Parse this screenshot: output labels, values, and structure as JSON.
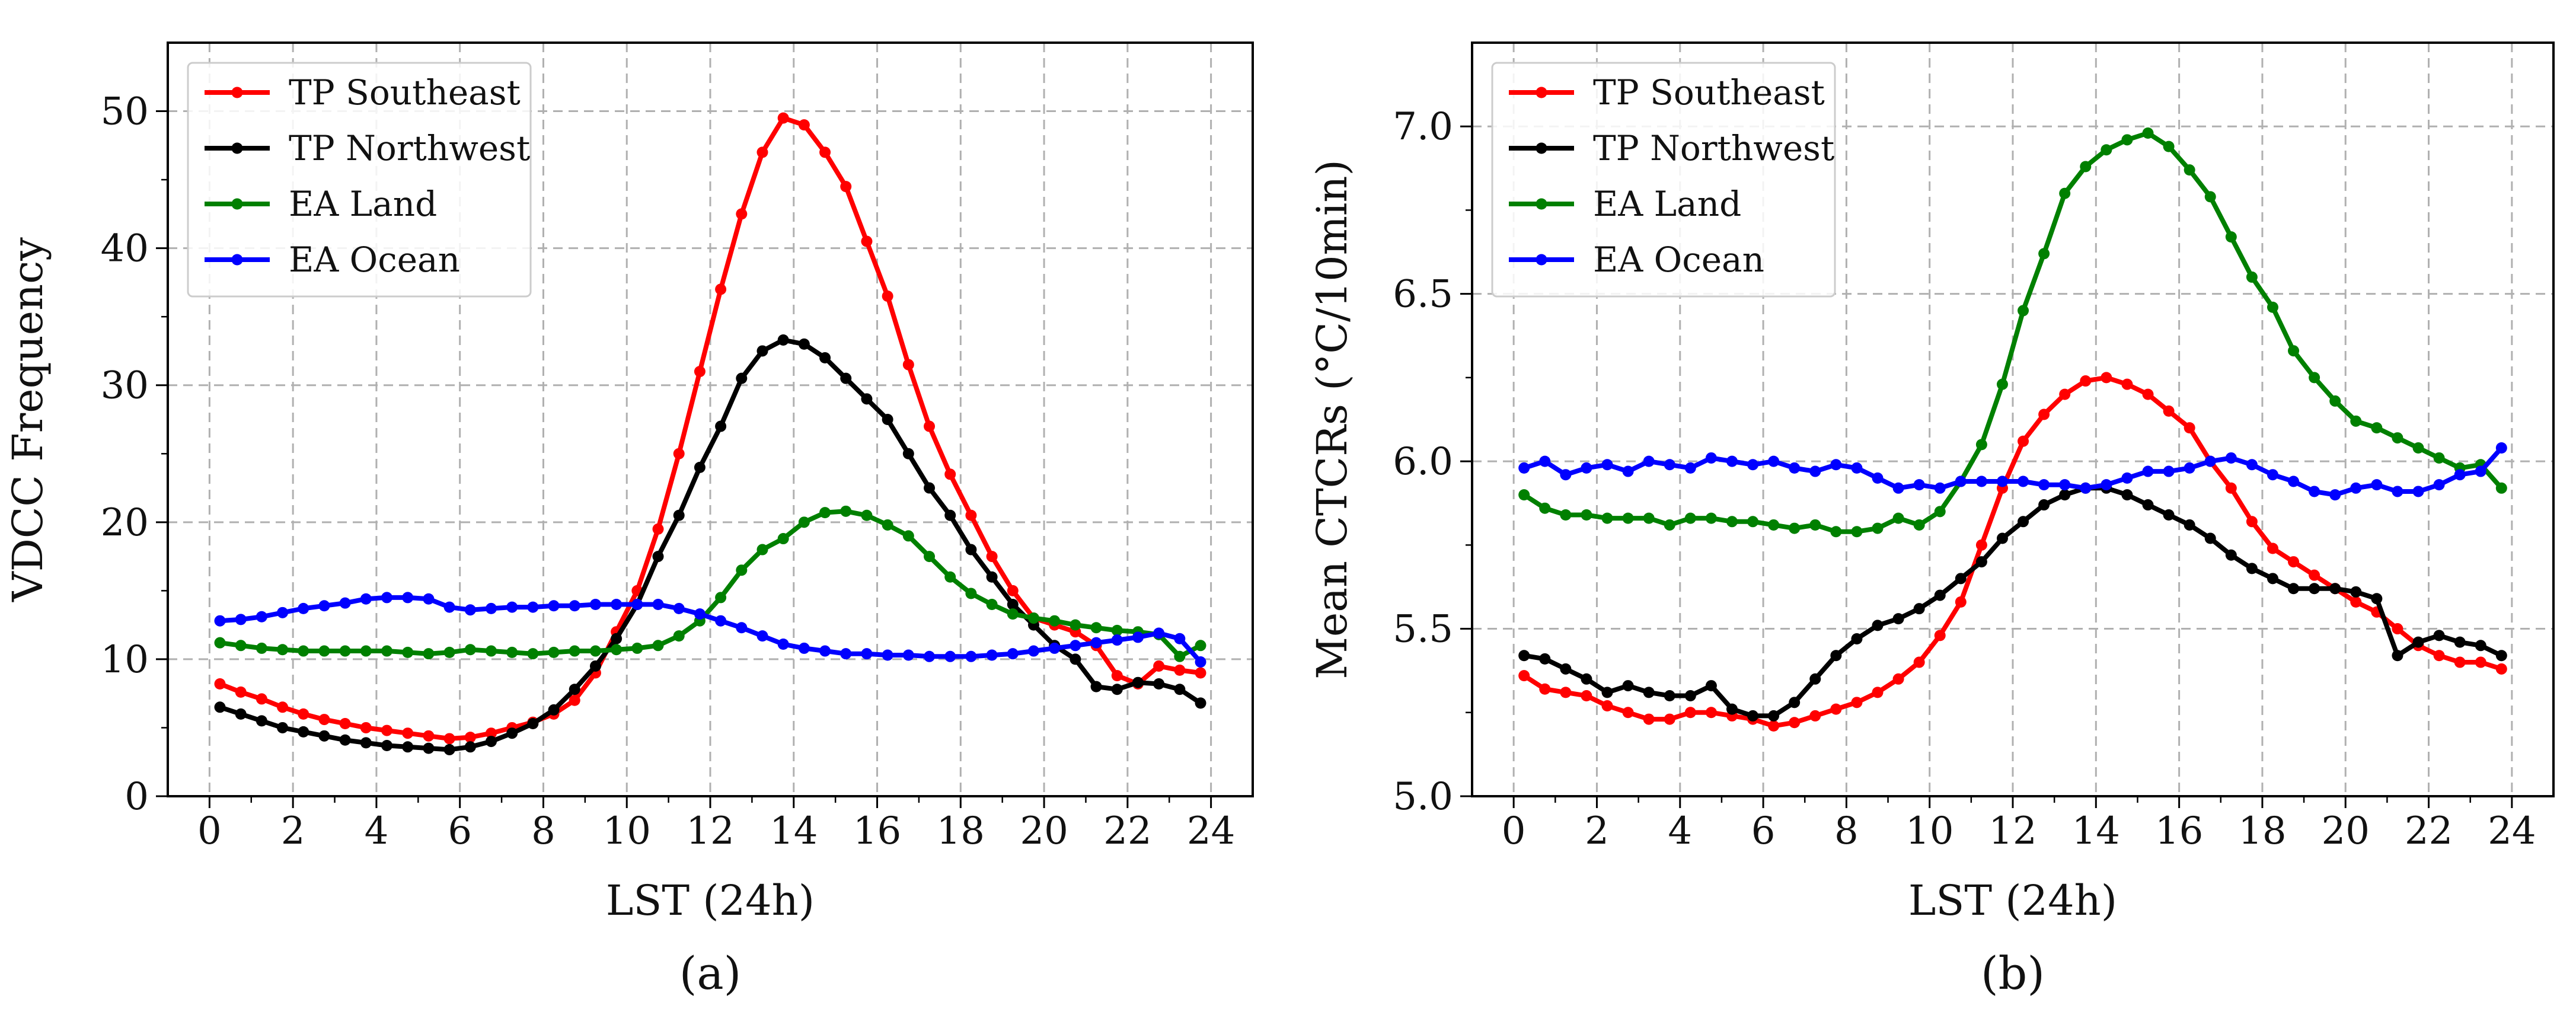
{
  "chart_data": [
    {
      "panel_label": "(a)",
      "type": "line",
      "xlabel": "LST (24h)",
      "ylabel": "VDCC Frequency",
      "xlim": [
        -1,
        25
      ],
      "ylim": [
        0,
        55
      ],
      "xticks": [
        0,
        2,
        4,
        6,
        8,
        10,
        12,
        14,
        16,
        18,
        20,
        22,
        24
      ],
      "yticks": [
        0,
        10,
        20,
        30,
        40,
        50
      ],
      "ytick_labels": [
        "0",
        "10",
        "20",
        "30",
        "40",
        "50"
      ],
      "grid": true,
      "legend_position": "top-left",
      "x": [
        0.25,
        0.75,
        1.25,
        1.75,
        2.25,
        2.75,
        3.25,
        3.75,
        4.25,
        4.75,
        5.25,
        5.75,
        6.25,
        6.75,
        7.25,
        7.75,
        8.25,
        8.75,
        9.25,
        9.75,
        10.25,
        10.75,
        11.25,
        11.75,
        12.25,
        12.75,
        13.25,
        13.75,
        14.25,
        14.75,
        15.25,
        15.75,
        16.25,
        16.75,
        17.25,
        17.75,
        18.25,
        18.75,
        19.25,
        19.75,
        20.25,
        20.75,
        21.25,
        21.75,
        22.25,
        22.75,
        23.25,
        23.75
      ],
      "series": [
        {
          "name": "TP Southeast",
          "color": "#ff0000",
          "values": [
            8.2,
            7.6,
            7.1,
            6.5,
            6.0,
            5.6,
            5.3,
            5.0,
            4.8,
            4.6,
            4.4,
            4.2,
            4.3,
            4.6,
            5.0,
            5.4,
            6.0,
            7.0,
            9.0,
            12.0,
            15.0,
            19.5,
            25.0,
            31.0,
            37.0,
            42.5,
            47.0,
            49.5,
            49.0,
            47.0,
            44.5,
            40.5,
            36.5,
            31.5,
            27.0,
            23.5,
            20.5,
            17.5,
            15.0,
            13.0,
            12.5,
            12.0,
            11.0,
            8.8,
            8.2,
            9.5,
            9.2,
            9.0
          ]
        },
        {
          "name": "TP Northwest",
          "color": "#000000",
          "values": [
            6.5,
            6.0,
            5.5,
            5.0,
            4.7,
            4.4,
            4.1,
            3.9,
            3.7,
            3.6,
            3.5,
            3.4,
            3.6,
            4.0,
            4.6,
            5.3,
            6.3,
            7.8,
            9.5,
            11.5,
            14.0,
            17.5,
            20.5,
            24.0,
            27.0,
            30.5,
            32.5,
            33.3,
            33.0,
            32.0,
            30.5,
            29.0,
            27.5,
            25.0,
            22.5,
            20.5,
            18.0,
            16.0,
            14.0,
            12.5,
            11.0,
            10.0,
            8.0,
            7.8,
            8.3,
            8.2,
            7.8,
            6.8
          ]
        },
        {
          "name": "EA Land",
          "color": "#008000",
          "values": [
            11.2,
            11.0,
            10.8,
            10.7,
            10.6,
            10.6,
            10.6,
            10.6,
            10.6,
            10.5,
            10.4,
            10.5,
            10.7,
            10.6,
            10.5,
            10.4,
            10.5,
            10.6,
            10.6,
            10.7,
            10.8,
            11.0,
            11.7,
            12.8,
            14.5,
            16.5,
            18.0,
            18.8,
            20.0,
            20.7,
            20.8,
            20.5,
            19.8,
            19.0,
            17.5,
            16.0,
            14.8,
            14.0,
            13.3,
            13.0,
            12.8,
            12.5,
            12.3,
            12.1,
            12.0,
            11.8,
            10.2,
            11.0
          ]
        },
        {
          "name": "EA Ocean",
          "color": "#0000ff",
          "values": [
            12.8,
            12.9,
            13.1,
            13.4,
            13.7,
            13.9,
            14.1,
            14.4,
            14.5,
            14.5,
            14.4,
            13.8,
            13.6,
            13.7,
            13.8,
            13.8,
            13.9,
            13.9,
            14.0,
            14.0,
            14.0,
            14.0,
            13.7,
            13.3,
            12.8,
            12.3,
            11.7,
            11.1,
            10.8,
            10.6,
            10.4,
            10.4,
            10.3,
            10.3,
            10.2,
            10.2,
            10.2,
            10.3,
            10.4,
            10.6,
            10.8,
            11.0,
            11.2,
            11.4,
            11.6,
            11.9,
            11.5,
            9.8
          ]
        }
      ]
    },
    {
      "panel_label": "(b)",
      "type": "line",
      "xlabel": "LST (24h)",
      "ylabel": "Mean CTCRs (°C/10min)",
      "xlim": [
        -1,
        25
      ],
      "ylim": [
        5.0,
        7.25
      ],
      "xticks": [
        0,
        2,
        4,
        6,
        8,
        10,
        12,
        14,
        16,
        18,
        20,
        22,
        24
      ],
      "yticks": [
        5.0,
        5.5,
        6.0,
        6.5,
        7.0
      ],
      "ytick_labels": [
        "5.0",
        "5.5",
        "6.0",
        "6.5",
        "7.0"
      ],
      "grid": true,
      "legend_position": "top-left",
      "x": [
        0.25,
        0.75,
        1.25,
        1.75,
        2.25,
        2.75,
        3.25,
        3.75,
        4.25,
        4.75,
        5.25,
        5.75,
        6.25,
        6.75,
        7.25,
        7.75,
        8.25,
        8.75,
        9.25,
        9.75,
        10.25,
        10.75,
        11.25,
        11.75,
        12.25,
        12.75,
        13.25,
        13.75,
        14.25,
        14.75,
        15.25,
        15.75,
        16.25,
        16.75,
        17.25,
        17.75,
        18.25,
        18.75,
        19.25,
        19.75,
        20.25,
        20.75,
        21.25,
        21.75,
        22.25,
        22.75,
        23.25,
        23.75
      ],
      "series": [
        {
          "name": "TP Southeast",
          "color": "#ff0000",
          "values": [
            5.36,
            5.32,
            5.31,
            5.3,
            5.27,
            5.25,
            5.23,
            5.23,
            5.25,
            5.25,
            5.24,
            5.23,
            5.21,
            5.22,
            5.24,
            5.26,
            5.28,
            5.31,
            5.35,
            5.4,
            5.48,
            5.58,
            5.75,
            5.92,
            6.06,
            6.14,
            6.2,
            6.24,
            6.25,
            6.23,
            6.2,
            6.15,
            6.1,
            6.0,
            5.92,
            5.82,
            5.74,
            5.7,
            5.66,
            5.62,
            5.58,
            5.55,
            5.5,
            5.45,
            5.42,
            5.4,
            5.4,
            5.38
          ]
        },
        {
          "name": "TP Northwest",
          "color": "#000000",
          "values": [
            5.42,
            5.41,
            5.38,
            5.35,
            5.31,
            5.33,
            5.31,
            5.3,
            5.3,
            5.33,
            5.26,
            5.24,
            5.24,
            5.28,
            5.35,
            5.42,
            5.47,
            5.51,
            5.53,
            5.56,
            5.6,
            5.65,
            5.7,
            5.77,
            5.82,
            5.87,
            5.9,
            5.92,
            5.92,
            5.9,
            5.87,
            5.84,
            5.81,
            5.77,
            5.72,
            5.68,
            5.65,
            5.62,
            5.62,
            5.62,
            5.61,
            5.59,
            5.42,
            5.46,
            5.48,
            5.46,
            5.45,
            5.42
          ]
        },
        {
          "name": "EA Land",
          "color": "#008000",
          "values": [
            5.9,
            5.86,
            5.84,
            5.84,
            5.83,
            5.83,
            5.83,
            5.81,
            5.83,
            5.83,
            5.82,
            5.82,
            5.81,
            5.8,
            5.81,
            5.79,
            5.79,
            5.8,
            5.83,
            5.81,
            5.85,
            5.94,
            6.05,
            6.23,
            6.45,
            6.62,
            6.8,
            6.88,
            6.93,
            6.96,
            6.98,
            6.94,
            6.87,
            6.79,
            6.67,
            6.55,
            6.46,
            6.33,
            6.25,
            6.18,
            6.12,
            6.1,
            6.07,
            6.04,
            6.01,
            5.98,
            5.99,
            5.92
          ]
        },
        {
          "name": "EA Ocean",
          "color": "#0000ff",
          "values": [
            5.98,
            6.0,
            5.96,
            5.98,
            5.99,
            5.97,
            6.0,
            5.99,
            5.98,
            6.01,
            6.0,
            5.99,
            6.0,
            5.98,
            5.97,
            5.99,
            5.98,
            5.95,
            5.92,
            5.93,
            5.92,
            5.94,
            5.94,
            5.94,
            5.94,
            5.93,
            5.93,
            5.92,
            5.93,
            5.95,
            5.97,
            5.97,
            5.98,
            6.0,
            6.01,
            5.99,
            5.96,
            5.94,
            5.91,
            5.9,
            5.92,
            5.93,
            5.91,
            5.91,
            5.93,
            5.96,
            5.97,
            6.04
          ]
        }
      ]
    }
  ]
}
